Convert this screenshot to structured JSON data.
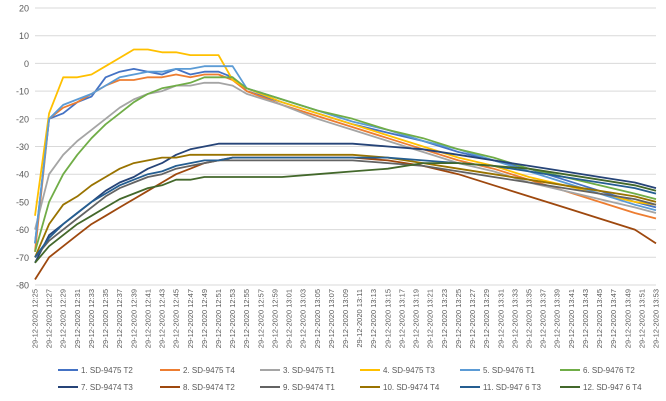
{
  "chart_data": {
    "type": "line",
    "title": "",
    "xlabel": "",
    "ylabel": "",
    "ylim": [
      -80,
      20
    ],
    "yticks": [
      20,
      10,
      0,
      -10,
      -20,
      -30,
      -40,
      -50,
      -60,
      -70,
      -80
    ],
    "grid": true,
    "legend": "bottom",
    "x_tick_labels": [
      "29-12-2020 12:25",
      "29-12-2020 12:27",
      "29-12-2020 12:29",
      "29-12-2020 12:31",
      "29-12-2020 12:33",
      "29-12-2020 12:35",
      "29-12-2020 12:37",
      "29-12-2020 12:39",
      "29-12-2020 12:41",
      "29-12-2020 12:43",
      "29-12-2020 12:45",
      "29-12-2020 12:47",
      "29-12-2020 12:49",
      "29-12-2020 12:51",
      "29-12-2020 12:53",
      "29-12-2020 12:55",
      "29-12-2020 12:57",
      "29-12-2020 12:59",
      "29-12-2020 13:01",
      "29-12-2020 13:03",
      "29-12-2020 13:05",
      "29-12-2020 13:07",
      "29-12-2020 13:09",
      "29-12-2020 13:11",
      "29-12-2020 13:13",
      "29-12-2020 13:15",
      "29-12-2020 13:17",
      "29-12-2020 13:19",
      "29-12-2020 13:21",
      "29-12-2020 13:23",
      "29-12-2020 13:25",
      "29-12-2020 13:27",
      "29-12-2020 13:29",
      "29-12-2020 13:31",
      "29-12-2020 13:33",
      "29-12-2020 13:35",
      "29-12-2020 13:37",
      "29-12-2020 13:39",
      "29-12-2020 13:41",
      "29-12-2020 13:43",
      "29-12-2020 13:45",
      "29-12-2020 13:47",
      "29-12-2020 13:49",
      "29-12-2020 13:51",
      "29-12-2020 13:53"
    ],
    "x_minutes": [
      0,
      2,
      4,
      6,
      8,
      10,
      12,
      14,
      16,
      18,
      20,
      22,
      24,
      26,
      28,
      30,
      35,
      40,
      45,
      50,
      55,
      60,
      65,
      70,
      75,
      80,
      85,
      88
    ],
    "series": [
      {
        "name": "1. SD-9475 T2",
        "color": "#4472C4",
        "values": [
          -65,
          -20,
          -18,
          -14,
          -12,
          -5,
          -3,
          -2,
          -3,
          -4,
          -2,
          -4,
          -3,
          -3,
          -5,
          -10,
          -14,
          -18,
          -22,
          -25,
          -28,
          -32,
          -35,
          -38,
          -42,
          -46,
          -50,
          -52
        ]
      },
      {
        "name": "2. SD-9475 T4",
        "color": "#ED7D31",
        "values": [
          -68,
          -20,
          -16,
          -14,
          -11,
          -8,
          -6,
          -6,
          -5,
          -5,
          -4,
          -5,
          -4,
          -4,
          -6,
          -10,
          -15,
          -19,
          -23,
          -27,
          -31,
          -35,
          -38,
          -42,
          -46,
          -50,
          -54,
          -56
        ]
      },
      {
        "name": "3. SD-9475 T1",
        "color": "#A5A5A5",
        "values": [
          -60,
          -40,
          -33,
          -28,
          -24,
          -20,
          -16,
          -13,
          -11,
          -10,
          -8,
          -8,
          -7,
          -7,
          -8,
          -11,
          -15,
          -20,
          -24,
          -28,
          -32,
          -36,
          -39,
          -43,
          -46,
          -49,
          -52,
          -54
        ]
      },
      {
        "name": "4. SD-9475 T3",
        "color": "#FFC000",
        "values": [
          -55,
          -18,
          -5,
          -5,
          -4,
          -1,
          2,
          5,
          5,
          4,
          4,
          3,
          3,
          3,
          -6,
          -9,
          -14,
          -18,
          -22,
          -26,
          -30,
          -34,
          -37,
          -41,
          -44,
          -47,
          -50,
          -51
        ]
      },
      {
        "name": "5. SD-9476 T1",
        "color": "#5B9BD5",
        "values": [
          -65,
          -20,
          -15,
          -13,
          -11,
          -8,
          -5,
          -4,
          -3,
          -3,
          -2,
          -2,
          -1,
          -1,
          -1,
          -9,
          -13,
          -17,
          -21,
          -24,
          -28,
          -31,
          -35,
          -39,
          -43,
          -47,
          -51,
          -53
        ]
      },
      {
        "name": "6. SD-9476 T2",
        "color": "#70AD47",
        "values": [
          -68,
          -50,
          -40,
          -33,
          -27,
          -22,
          -18,
          -14,
          -11,
          -9,
          -8,
          -7,
          -5,
          -5,
          -5,
          -9,
          -13,
          -17,
          -20,
          -24,
          -27,
          -31,
          -34,
          -38,
          -41,
          -44,
          -47,
          -49
        ]
      },
      {
        "name": "7. SD-9474 T3",
        "color": "#264478",
        "values": [
          -72,
          -62,
          -58,
          -54,
          -50,
          -46,
          -43,
          -41,
          -38,
          -36,
          -33,
          -31,
          -30,
          -29,
          -29,
          -29,
          -29,
          -29,
          -29,
          -30,
          -31,
          -33,
          -35,
          -37,
          -39,
          -41,
          -43,
          -45
        ]
      },
      {
        "name": "8. SD-9474 T2",
        "color": "#9E480E",
        "values": [
          -78,
          -70,
          -66,
          -62,
          -58,
          -55,
          -52,
          -49,
          -46,
          -43,
          -40,
          -38,
          -36,
          -35,
          -34,
          -34,
          -34,
          -34,
          -34,
          -35,
          -37,
          -40,
          -44,
          -48,
          -52,
          -56,
          -60,
          -65
        ]
      },
      {
        "name": "9. SD-9474 T1",
        "color": "#636363",
        "values": [
          -70,
          -64,
          -60,
          -56,
          -52,
          -48,
          -45,
          -43,
          -41,
          -40,
          -38,
          -37,
          -36,
          -35,
          -35,
          -35,
          -35,
          -35,
          -35,
          -36,
          -37,
          -39,
          -41,
          -43,
          -45,
          -47,
          -49,
          -51
        ]
      },
      {
        "name": "10. SD-9474 T4",
        "color": "#997300",
        "values": [
          -70,
          -58,
          -51,
          -48,
          -44,
          -41,
          -38,
          -36,
          -35,
          -34,
          -34,
          -33,
          -33,
          -33,
          -33,
          -33,
          -33,
          -33,
          -33,
          -34,
          -36,
          -38,
          -40,
          -42,
          -44,
          -46,
          -48,
          -50
        ]
      },
      {
        "name": "11. SD-947 6 T3",
        "color": "#255E91",
        "values": [
          -70,
          -63,
          -58,
          -54,
          -50,
          -47,
          -44,
          -42,
          -40,
          -39,
          -37,
          -36,
          -35,
          -35,
          -34,
          -34,
          -34,
          -34,
          -34,
          -34,
          -35,
          -36,
          -37,
          -39,
          -41,
          -43,
          -45,
          -47
        ]
      },
      {
        "name": "12. SD-947 6 T4",
        "color": "#43682B",
        "values": [
          -72,
          -66,
          -62,
          -58,
          -55,
          -52,
          -49,
          -47,
          -45,
          -44,
          -42,
          -42,
          -41,
          -41,
          -41,
          -41,
          -41,
          -40,
          -39,
          -38,
          -36,
          -36,
          -37,
          -38,
          -40,
          -42,
          -44,
          -46
        ]
      }
    ]
  }
}
